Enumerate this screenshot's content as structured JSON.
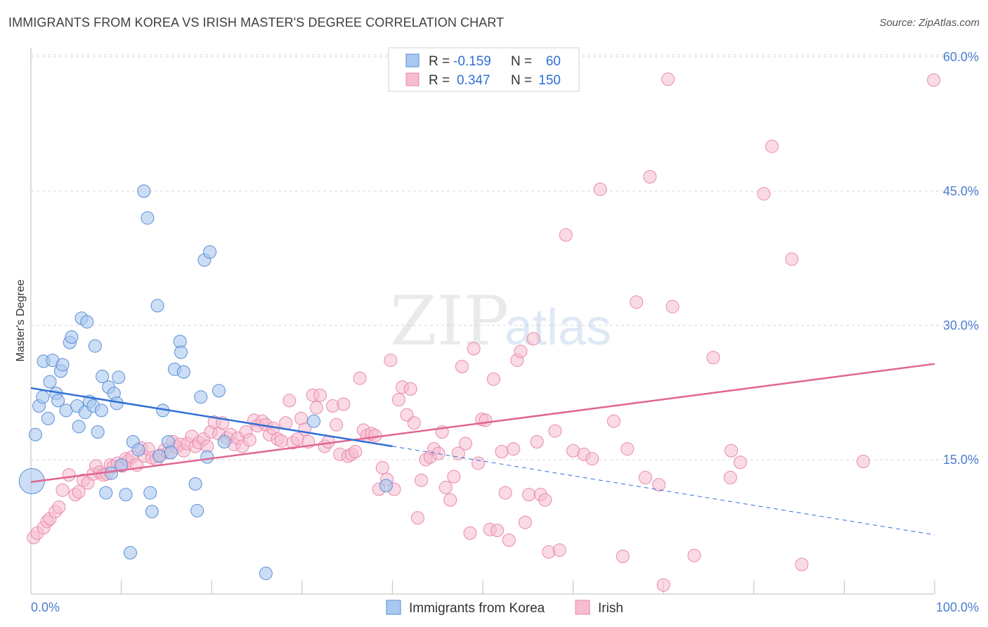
{
  "title": "IMMIGRANTS FROM KOREA VS IRISH MASTER'S DEGREE CORRELATION CHART",
  "source": "Source: ZipAtlas.com",
  "watermark": {
    "zip": "ZIP",
    "atlas": "atlas"
  },
  "colors": {
    "korea_fill": "#a9c8ef",
    "korea_stroke": "#5b8ed6",
    "korea_line": "#2f6fd6",
    "irish_fill": "#f6bcd0",
    "irish_stroke": "#e88aab",
    "irish_line": "#e06593",
    "tick_text": "#4a7fd0",
    "grid": "#d8d8d8"
  },
  "legend": {
    "rows": [
      {
        "r_label": "R =",
        "r_value": "-0.159",
        "n_label": "N =",
        "n_value": "60"
      },
      {
        "r_label": "R =",
        "r_value": "0.347",
        "n_label": "N =",
        "n_value": "150"
      }
    ]
  },
  "chart_data": {
    "type": "scatter",
    "xlabel": "",
    "ylabel": "Master's Degree",
    "xlim": [
      0,
      100
    ],
    "ylim": [
      0,
      63.6
    ],
    "x_tick_labels": [
      "0.0%",
      "100.0%"
    ],
    "y_ticks": [
      15,
      30,
      45,
      60
    ],
    "y_tick_labels": [
      "15.0%",
      "30.0%",
      "45.0%",
      "60.0%"
    ],
    "grid": "horizontal dashed",
    "legend_position": "top-center",
    "series": [
      {
        "name": "Immigrants from Korea",
        "trend": {
          "x": [
            0,
            40
          ],
          "y": [
            23.0,
            16.5
          ],
          "dashed_to": [
            100,
            6.6
          ]
        },
        "points": [
          [
            0.1,
            12.6,
            3
          ],
          [
            0.5,
            17.8,
            1
          ],
          [
            0.9,
            21.0,
            1
          ],
          [
            1.3,
            22.0,
            1
          ],
          [
            1.4,
            26.0,
            1
          ],
          [
            1.9,
            19.6,
            1
          ],
          [
            2.1,
            23.7,
            1
          ],
          [
            2.4,
            26.1,
            1
          ],
          [
            2.8,
            22.4,
            1
          ],
          [
            3.0,
            21.6,
            1
          ],
          [
            3.3,
            24.9,
            1
          ],
          [
            3.5,
            25.6,
            1
          ],
          [
            3.9,
            20.5,
            1
          ],
          [
            4.3,
            28.1,
            1
          ],
          [
            4.5,
            28.7,
            1
          ],
          [
            5.1,
            21.0,
            1
          ],
          [
            5.3,
            18.7,
            1
          ],
          [
            5.6,
            30.8,
            1
          ],
          [
            6.0,
            20.3,
            1
          ],
          [
            6.2,
            30.4,
            1
          ],
          [
            6.5,
            21.5,
            1
          ],
          [
            6.9,
            21.0,
            1
          ],
          [
            7.1,
            27.7,
            1
          ],
          [
            7.4,
            18.1,
            1
          ],
          [
            7.8,
            20.5,
            1
          ],
          [
            7.9,
            24.3,
            1
          ],
          [
            8.3,
            11.3,
            1
          ],
          [
            8.6,
            23.1,
            1
          ],
          [
            8.9,
            13.5,
            1
          ],
          [
            9.2,
            22.4,
            1
          ],
          [
            9.5,
            21.3,
            1
          ],
          [
            9.7,
            24.2,
            1
          ],
          [
            10.0,
            14.4,
            1
          ],
          [
            10.5,
            11.1,
            1
          ],
          [
            11.0,
            4.6,
            1
          ],
          [
            11.3,
            17.0,
            1
          ],
          [
            11.9,
            16.1,
            1
          ],
          [
            12.5,
            45.0,
            1
          ],
          [
            12.9,
            42.0,
            1
          ],
          [
            13.2,
            11.3,
            1
          ],
          [
            13.4,
            9.2,
            1
          ],
          [
            14.0,
            32.2,
            1
          ],
          [
            14.2,
            15.4,
            1
          ],
          [
            14.6,
            20.5,
            1
          ],
          [
            15.2,
            17.0,
            1
          ],
          [
            15.5,
            15.8,
            1
          ],
          [
            15.9,
            25.1,
            1
          ],
          [
            16.5,
            28.2,
            1
          ],
          [
            16.6,
            27.0,
            1
          ],
          [
            16.9,
            24.8,
            1
          ],
          [
            18.2,
            12.3,
            1
          ],
          [
            18.4,
            9.3,
            1
          ],
          [
            18.8,
            22.0,
            1
          ],
          [
            19.2,
            37.3,
            1
          ],
          [
            19.5,
            15.3,
            1
          ],
          [
            19.8,
            38.2,
            1
          ],
          [
            20.8,
            22.7,
            1
          ],
          [
            21.4,
            17.0,
            1
          ],
          [
            26.0,
            2.3,
            1
          ],
          [
            31.3,
            19.3,
            1
          ],
          [
            39.3,
            12.1,
            1
          ]
        ]
      },
      {
        "name": "Irish",
        "trend": {
          "x": [
            0,
            100
          ],
          "y": [
            12.5,
            25.7
          ]
        },
        "points": [
          [
            0.3,
            6.3
          ],
          [
            0.7,
            6.8
          ],
          [
            1.4,
            7.4
          ],
          [
            1.8,
            8.1
          ],
          [
            2.1,
            8.4
          ],
          [
            2.7,
            9.2
          ],
          [
            3.1,
            9.7
          ],
          [
            3.5,
            11.6
          ],
          [
            4.2,
            13.3
          ],
          [
            4.9,
            11.1
          ],
          [
            5.3,
            11.4
          ],
          [
            5.8,
            12.7
          ],
          [
            6.3,
            12.4
          ],
          [
            6.9,
            13.4
          ],
          [
            7.2,
            14.3
          ],
          [
            7.6,
            13.6
          ],
          [
            8.0,
            13.3
          ],
          [
            8.4,
            13.4
          ],
          [
            8.8,
            14.4
          ],
          [
            9.1,
            14.2
          ],
          [
            9.6,
            14.6
          ],
          [
            10.1,
            14.3
          ],
          [
            10.5,
            15.1
          ],
          [
            10.8,
            14.9
          ],
          [
            11.2,
            15.3
          ],
          [
            11.7,
            14.4
          ],
          [
            12.2,
            16.3
          ],
          [
            12.5,
            15.4
          ],
          [
            13.0,
            16.2
          ],
          [
            13.4,
            15.2
          ],
          [
            13.9,
            15.0
          ],
          [
            14.3,
            15.5
          ],
          [
            14.8,
            16.1
          ],
          [
            15.2,
            15.8
          ],
          [
            15.7,
            17.0
          ],
          [
            16.1,
            16.4
          ],
          [
            16.5,
            16.7
          ],
          [
            16.9,
            16.0
          ],
          [
            17.3,
            16.8
          ],
          [
            17.8,
            17.6
          ],
          [
            18.2,
            16.5
          ],
          [
            18.6,
            16.9
          ],
          [
            19.1,
            17.3
          ],
          [
            19.5,
            16.5
          ],
          [
            19.9,
            18.1
          ],
          [
            20.3,
            19.2
          ],
          [
            20.8,
            17.9
          ],
          [
            21.2,
            19.1
          ],
          [
            21.7,
            17.4
          ],
          [
            22.1,
            17.8
          ],
          [
            22.5,
            16.7
          ],
          [
            22.9,
            17.4
          ],
          [
            23.4,
            16.5
          ],
          [
            23.8,
            18.1
          ],
          [
            24.2,
            17.2
          ],
          [
            24.7,
            19.4
          ],
          [
            25.1,
            18.8
          ],
          [
            25.6,
            19.3
          ],
          [
            26.0,
            18.9
          ],
          [
            26.4,
            17.8
          ],
          [
            26.8,
            18.5
          ],
          [
            27.3,
            17.3
          ],
          [
            27.7,
            17.1
          ],
          [
            28.2,
            19.1
          ],
          [
            28.6,
            21.6
          ],
          [
            29.0,
            16.9
          ],
          [
            29.5,
            17.3
          ],
          [
            29.9,
            19.6
          ],
          [
            30.3,
            18.4
          ],
          [
            30.7,
            17.0
          ],
          [
            31.2,
            22.2
          ],
          [
            31.6,
            20.8
          ],
          [
            32.0,
            22.2
          ],
          [
            32.5,
            16.5
          ],
          [
            32.9,
            17.0
          ],
          [
            33.4,
            21.0
          ],
          [
            33.8,
            18.9
          ],
          [
            34.2,
            15.6
          ],
          [
            34.6,
            21.2
          ],
          [
            35.1,
            15.4
          ],
          [
            35.5,
            15.6
          ],
          [
            35.9,
            15.9
          ],
          [
            36.4,
            24.1
          ],
          [
            36.8,
            18.3
          ],
          [
            37.2,
            17.7
          ],
          [
            37.7,
            17.9
          ],
          [
            38.1,
            17.7
          ],
          [
            38.5,
            11.7
          ],
          [
            38.9,
            14.1
          ],
          [
            39.4,
            12.8
          ],
          [
            39.8,
            26.1
          ],
          [
            40.2,
            11.7
          ],
          [
            40.7,
            21.7
          ],
          [
            41.1,
            23.1
          ],
          [
            41.6,
            20.0
          ],
          [
            42.0,
            22.9
          ],
          [
            42.4,
            19.1
          ],
          [
            42.8,
            8.5
          ],
          [
            43.2,
            12.7
          ],
          [
            43.7,
            15.0
          ],
          [
            44.2,
            15.3
          ],
          [
            44.6,
            16.2
          ],
          [
            45.1,
            15.7
          ],
          [
            45.5,
            18.1
          ],
          [
            45.9,
            11.9
          ],
          [
            46.4,
            10.5
          ],
          [
            46.8,
            13.1
          ],
          [
            47.3,
            15.7
          ],
          [
            47.7,
            25.4
          ],
          [
            48.1,
            16.8
          ],
          [
            48.6,
            6.8
          ],
          [
            49.0,
            27.4
          ],
          [
            49.5,
            14.6
          ],
          [
            49.9,
            19.5
          ],
          [
            50.3,
            19.4
          ],
          [
            50.8,
            7.2
          ],
          [
            51.2,
            24.0
          ],
          [
            51.6,
            7.1
          ],
          [
            52.1,
            15.9
          ],
          [
            52.5,
            11.3
          ],
          [
            52.9,
            6.0
          ],
          [
            53.4,
            16.2
          ],
          [
            53.8,
            26.1
          ],
          [
            54.2,
            27.1
          ],
          [
            54.7,
            8.0
          ],
          [
            55.1,
            11.1
          ],
          [
            55.6,
            28.5
          ],
          [
            56.0,
            17.0
          ],
          [
            56.4,
            11.1
          ],
          [
            56.9,
            10.5
          ],
          [
            57.3,
            4.7
          ],
          [
            58.0,
            18.2
          ],
          [
            58.5,
            4.9
          ],
          [
            59.2,
            40.1
          ],
          [
            60.0,
            16.0
          ],
          [
            61.2,
            15.6
          ],
          [
            62.1,
            15.1
          ],
          [
            63.0,
            45.2
          ],
          [
            64.5,
            19.3
          ],
          [
            65.5,
            4.2
          ],
          [
            66.0,
            16.2
          ],
          [
            67.0,
            32.6
          ],
          [
            68.0,
            13.0
          ],
          [
            68.5,
            46.6
          ],
          [
            69.5,
            12.2
          ],
          [
            70.0,
            1.0
          ],
          [
            70.5,
            57.5
          ],
          [
            71.0,
            32.1
          ],
          [
            73.4,
            4.3
          ],
          [
            75.5,
            26.4
          ],
          [
            77.4,
            13.0
          ],
          [
            77.5,
            16.0
          ],
          [
            78.5,
            14.7
          ],
          [
            81.1,
            44.7
          ],
          [
            82.0,
            50.0
          ],
          [
            84.2,
            37.4
          ],
          [
            85.3,
            3.3
          ],
          [
            92.1,
            14.8
          ],
          [
            99.9,
            57.4
          ]
        ]
      }
    ]
  },
  "bottom_legend": [
    "Immigrants from Korea",
    "Irish"
  ]
}
